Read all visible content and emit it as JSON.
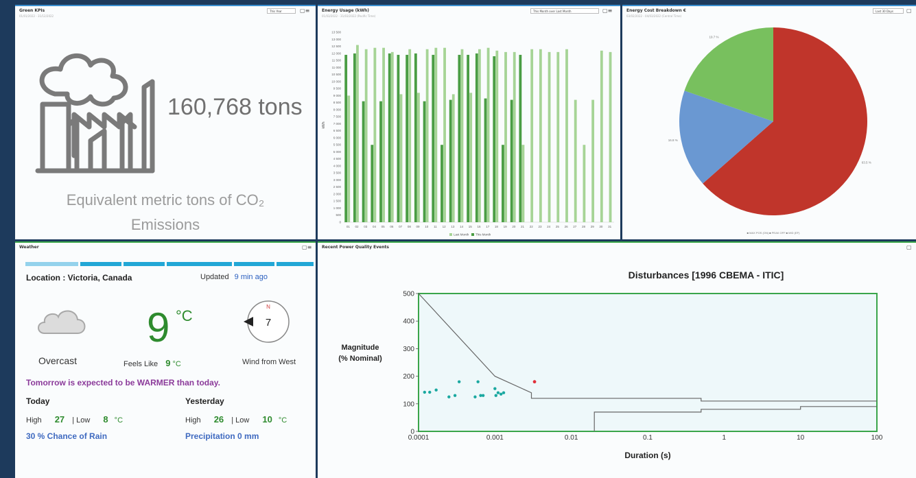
{
  "green_kpis": {
    "title": "Green KPIs",
    "subtitle": "01/01/2022 - 31/12/2022",
    "period": "This Year",
    "value": "160,768 tons",
    "label_line1": "Equivalent metric tons of CO₂",
    "label_line2": "Emissions",
    "icon": "factory-icon"
  },
  "energy_usage": {
    "title": "Energy Usage (kWh)",
    "subtitle": "01/03/2022 - 31/03/2022 (Pacific Time)",
    "period": "This Month over Last Month",
    "chart_data": {
      "type": "bar",
      "title": "",
      "xlabel": "",
      "ylabel": "kWh",
      "ylim": [
        0,
        13800
      ],
      "yticks": [
        0,
        500,
        1000,
        1500,
        2000,
        2500,
        3000,
        3500,
        4000,
        4500,
        5000,
        5500,
        6000,
        6500,
        7000,
        7500,
        8000,
        8500,
        9000,
        9500,
        10000,
        10500,
        11000,
        11500,
        12000,
        12500,
        13000,
        13500
      ],
      "ytick_labels": [
        "0",
        "500",
        "1 000",
        "1 500",
        "2 000",
        "2 500",
        "3 000",
        "3 500",
        "4 000",
        "4 500",
        "5 000",
        "5 500",
        "6 000",
        "6 500",
        "7 000",
        "7 500",
        "8 000",
        "8 500",
        "9 000",
        "9 500",
        "10 000",
        "10 500",
        "11 000",
        "11 500",
        "12 000",
        "12 500",
        "13 000",
        "13 500"
      ],
      "categories": [
        "01",
        "02",
        "03",
        "04",
        "05",
        "06",
        "07",
        "08",
        "09",
        "10",
        "11",
        "12",
        "13",
        "14",
        "15",
        "16",
        "17",
        "18",
        "19",
        "20",
        "21",
        "22",
        "23",
        "24",
        "25",
        "26",
        "27",
        "28",
        "29",
        "30",
        "31"
      ],
      "series": [
        {
          "name": "Last Month",
          "color": "#a6d496",
          "values": [
            9000,
            12600,
            12300,
            12400,
            12400,
            12100,
            9100,
            12300,
            9200,
            12300,
            12400,
            12400,
            9100,
            12300,
            9200,
            12300,
            12400,
            12200,
            12100,
            12100,
            5500,
            12300,
            12300,
            12100,
            12100,
            12300,
            8700,
            5500,
            8700,
            12200,
            12100
          ]
        },
        {
          "name": "This Month",
          "color": "#4a9d44",
          "values": [
            11900,
            12000,
            8600,
            5500,
            8600,
            12000,
            11900,
            11900,
            12000,
            8600,
            11900,
            5500,
            8700,
            11900,
            11900,
            12000,
            8800,
            11800,
            5500,
            8700,
            11900,
            0,
            0,
            0,
            0,
            0,
            0,
            0,
            0,
            0,
            0
          ]
        }
      ],
      "legend": "bottom",
      "legend_labels": [
        "Last Month",
        "This Month"
      ]
    }
  },
  "energy_cost": {
    "title": "Energy Cost Breakdown €",
    "subtitle": "03/02/2022 - 04/03/2022 (Central Time)",
    "period": "Last 30 Days",
    "chart_data": {
      "type": "pie",
      "slices": [
        {
          "label": "MAX POS (ON)",
          "value": 63.5,
          "color": "#c0352b",
          "text": "63.5 %"
        },
        {
          "label": "PEAK OFF",
          "value": 16.8,
          "color": "#6a98d2",
          "text": "16.8 %"
        },
        {
          "label": "MID",
          "value": 19.7,
          "color": "#78c05e",
          "text": "19.7 %"
        }
      ],
      "legend": "bottom",
      "legend_text": "■ MAX POS (ON) ■ PEAK OFF ■ MID (EF)"
    }
  },
  "weather": {
    "title": "Weather",
    "location": "Location : Victoria, Canada",
    "updated_label": "Updated",
    "updated_value": "9 min ago",
    "condition": "Overcast",
    "temp": "9",
    "temp_unit": "°C",
    "feels_label": "Feels Like",
    "feels_value": "9",
    "feels_unit": "°C",
    "wind_speed": "7",
    "compass_n": "N",
    "wind_label": "Wind from West",
    "forecast": "Tomorrow is expected to be WARMER than today.",
    "today": {
      "label": "Today",
      "high_label": "High",
      "high": "27",
      "low_label": "| Low",
      "low": "8",
      "unit": "°C",
      "extra": "30 % Chance of Rain"
    },
    "yesterday": {
      "label": "Yesterday",
      "high_label": "High",
      "high": "26",
      "low_label": "| Low",
      "low": "10",
      "unit": "°C",
      "extra": "Precipitation 0 mm"
    }
  },
  "power_quality": {
    "title": "Recent Power Quality Events",
    "chart_data": {
      "type": "scatter",
      "title": "Disturbances [1996 CBEMA - ITIC]",
      "ylabel_line1": "Magnitude",
      "ylabel_line2": "(% Nominal)",
      "xlabel": "Duration (s)",
      "x_scale": "log",
      "xlim": [
        0.0001,
        100
      ],
      "ylim": [
        0,
        500
      ],
      "xtick_values": [
        0.0001,
        0.001,
        0.01,
        0.1,
        1,
        10,
        100
      ],
      "xtick_labels": [
        "0.0001",
        "0.001",
        "0.01",
        "0.1",
        "1",
        "10",
        "100"
      ],
      "yticks": [
        0,
        100,
        200,
        300,
        400,
        500
      ],
      "points": [
        {
          "x": 0.00012,
          "y": 142
        },
        {
          "x": 0.00014,
          "y": 142
        },
        {
          "x": 0.00017,
          "y": 150
        },
        {
          "x": 0.00025,
          "y": 125
        },
        {
          "x": 0.0003,
          "y": 130
        },
        {
          "x": 0.00034,
          "y": 180
        },
        {
          "x": 0.00055,
          "y": 125
        },
        {
          "x": 0.0006,
          "y": 180
        },
        {
          "x": 0.00065,
          "y": 130
        },
        {
          "x": 0.0007,
          "y": 130
        },
        {
          "x": 0.001,
          "y": 155
        },
        {
          "x": 0.00103,
          "y": 130
        },
        {
          "x": 0.0011,
          "y": 140
        },
        {
          "x": 0.0012,
          "y": 135
        },
        {
          "x": 0.0013,
          "y": 140
        }
      ],
      "outlier": {
        "x": 0.0033,
        "y": 180
      },
      "point_color": "#1aa8a0",
      "outlier_color": "#e0303a",
      "upper_curve": [
        [
          0.0001,
          500
        ],
        [
          0.001,
          200
        ],
        [
          0.003,
          140
        ],
        [
          0.003,
          120
        ],
        [
          0.5,
          120
        ],
        [
          0.5,
          110
        ],
        [
          100,
          110
        ]
      ],
      "lower_curve": [
        [
          0.02,
          0
        ],
        [
          0.02,
          70
        ],
        [
          0.5,
          70
        ],
        [
          0.5,
          80
        ],
        [
          10,
          80
        ],
        [
          10,
          90
        ],
        [
          100,
          90
        ]
      ],
      "background": "#eef8fa",
      "frame_color": "#3aa54a"
    }
  }
}
